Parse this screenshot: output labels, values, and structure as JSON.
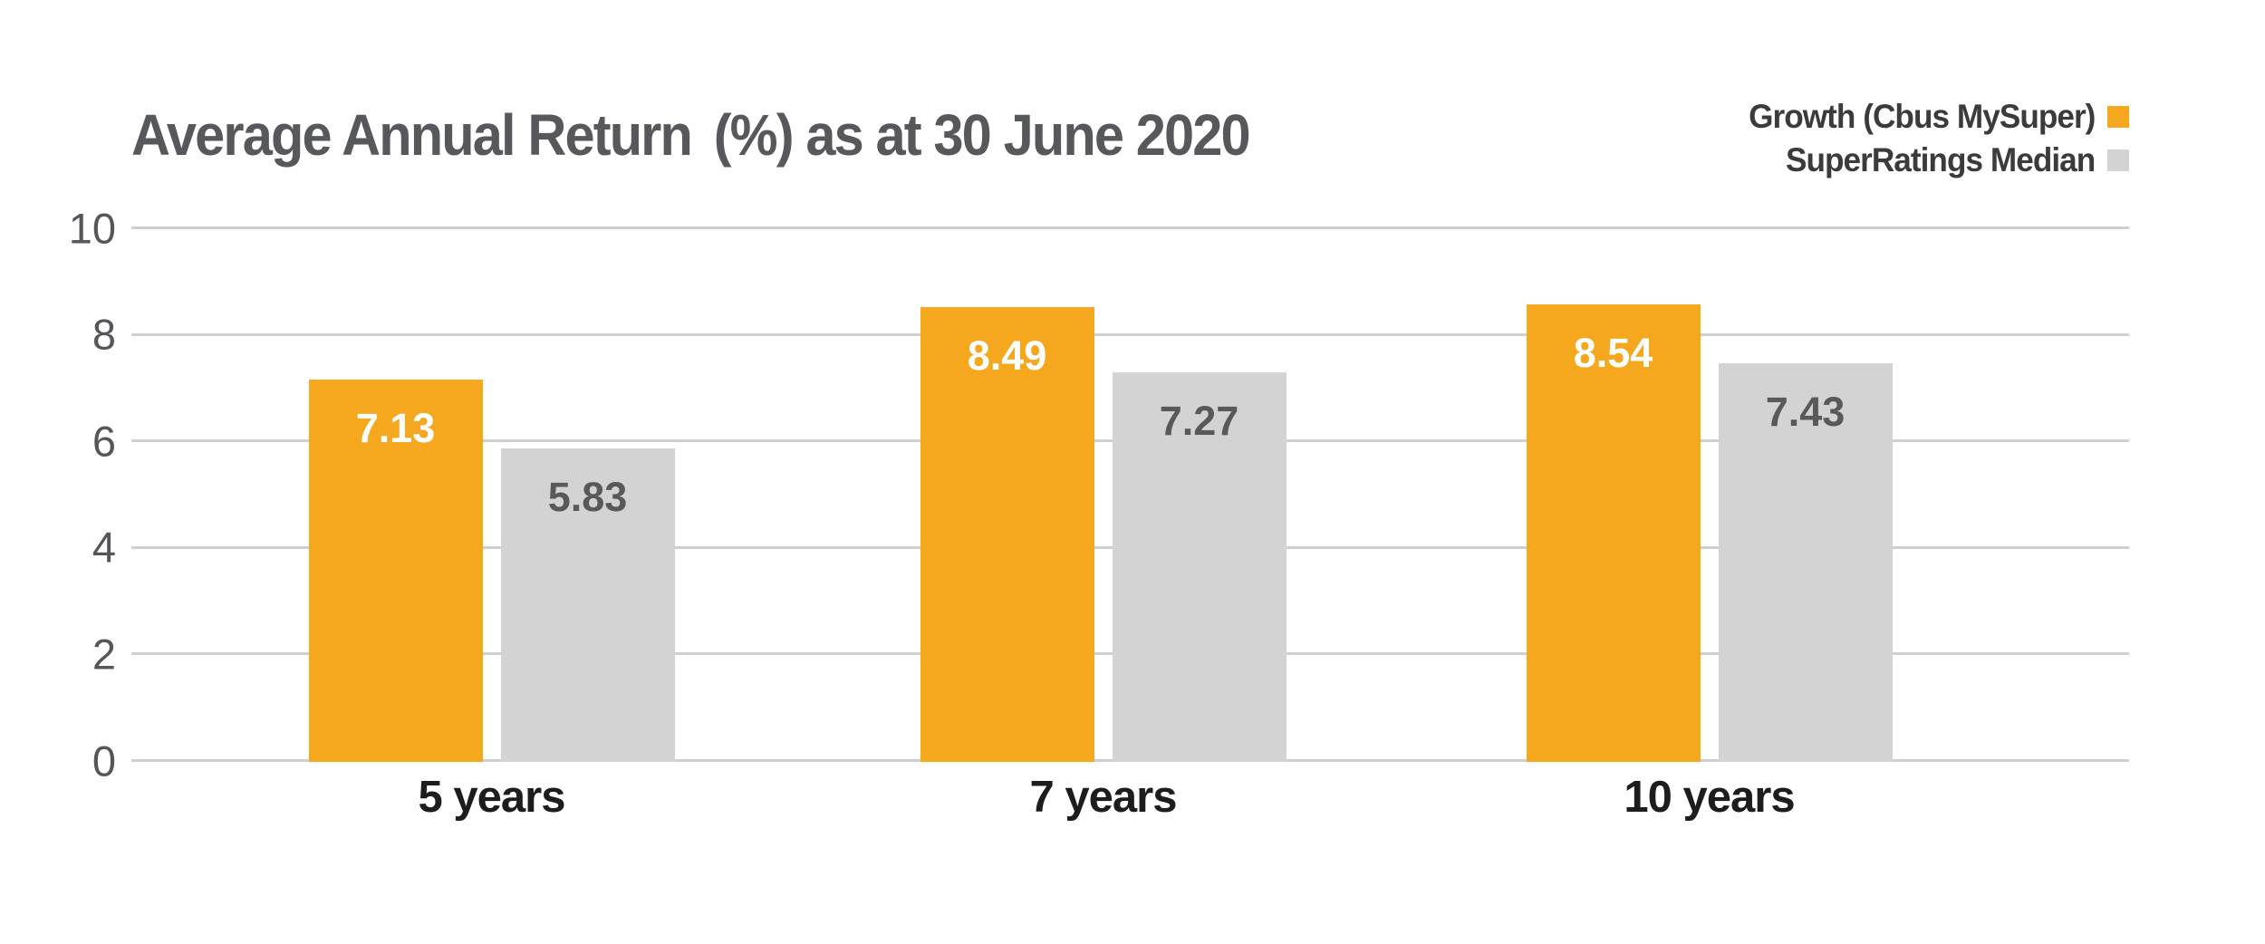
{
  "title": "Average Annual Return  (%) as at 30 June 2020",
  "legend": [
    {
      "label": "Growth (Cbus MySuper)",
      "color": "#F5A71E"
    },
    {
      "label": "SuperRatings Median",
      "color": "#D3D3D3"
    }
  ],
  "colors": {
    "accent_orange": "#F5A71E",
    "bar_gray": "#D3D3D3",
    "title_gray": "#56585B",
    "axis_text": "#54565A",
    "category_text": "#1D1D1E",
    "gridline": "#CFCFCF",
    "value_label_on_orange": "#FFFFFF",
    "value_label_on_gray": "#58595B"
  },
  "chart_data": {
    "type": "bar",
    "title": "Average Annual Return (%) as at 30 June 2020",
    "categories": [
      "5 years",
      "7 years",
      "10 years"
    ],
    "series": [
      {
        "name": "Growth (Cbus MySuper)",
        "color": "#F5A71E",
        "label_color": "#FFFFFF",
        "values": [
          7.13,
          8.49,
          8.54
        ]
      },
      {
        "name": "SuperRatings Median",
        "color": "#D3D3D3",
        "label_color": "#58595B",
        "values": [
          5.83,
          7.27,
          7.43
        ]
      }
    ],
    "value_labels": [
      [
        "7.13",
        "8.49",
        "8.54"
      ],
      [
        "5.83",
        "7.27",
        "7.43"
      ]
    ],
    "yticks": [
      10,
      8,
      6,
      4,
      2,
      0
    ],
    "ylim": [
      0,
      10
    ],
    "xlabel": "",
    "ylabel": "",
    "grid": true,
    "legend_position": "top-right"
  }
}
